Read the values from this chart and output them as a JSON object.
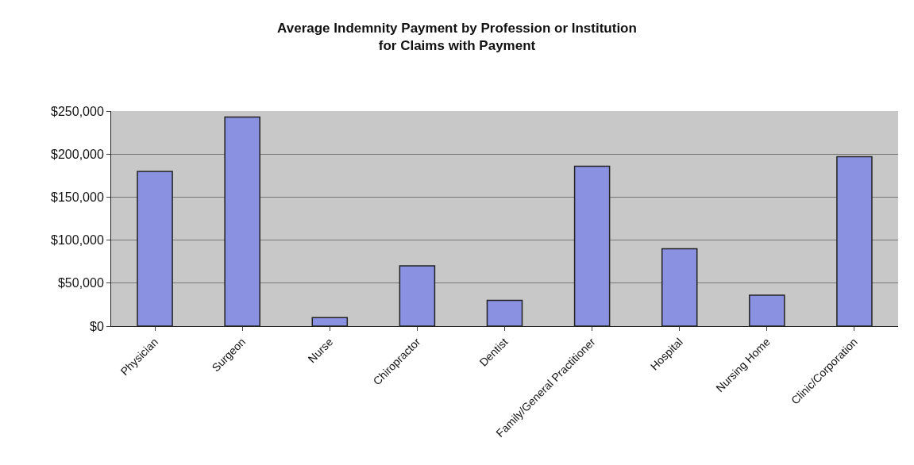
{
  "chart_data": {
    "type": "bar",
    "title": "Average Indemnity Payment by Profession or Institution",
    "subtitle": "for Claims with Payment",
    "categories": [
      "Physician",
      "Surgeon",
      "Nurse",
      "Chiropractor",
      "Dentist",
      "Family/General Practitioner",
      "Hospital",
      "Nursing Home",
      "Clinic/Corporation"
    ],
    "values": [
      180000,
      243000,
      10000,
      70000,
      30000,
      186000,
      90000,
      36000,
      197000
    ],
    "color": "#8a91e0",
    "ylim": [
      0,
      250000
    ],
    "yticks": [
      {
        "value": 0,
        "label": "$0"
      },
      {
        "value": 50000,
        "label": "$50,000"
      },
      {
        "value": 100000,
        "label": "$100,000"
      },
      {
        "value": 150000,
        "label": "$150,000"
      },
      {
        "value": 200000,
        "label": "$200,000"
      },
      {
        "value": 250000,
        "label": "$250,000"
      }
    ],
    "grid": "y",
    "legend": false
  }
}
